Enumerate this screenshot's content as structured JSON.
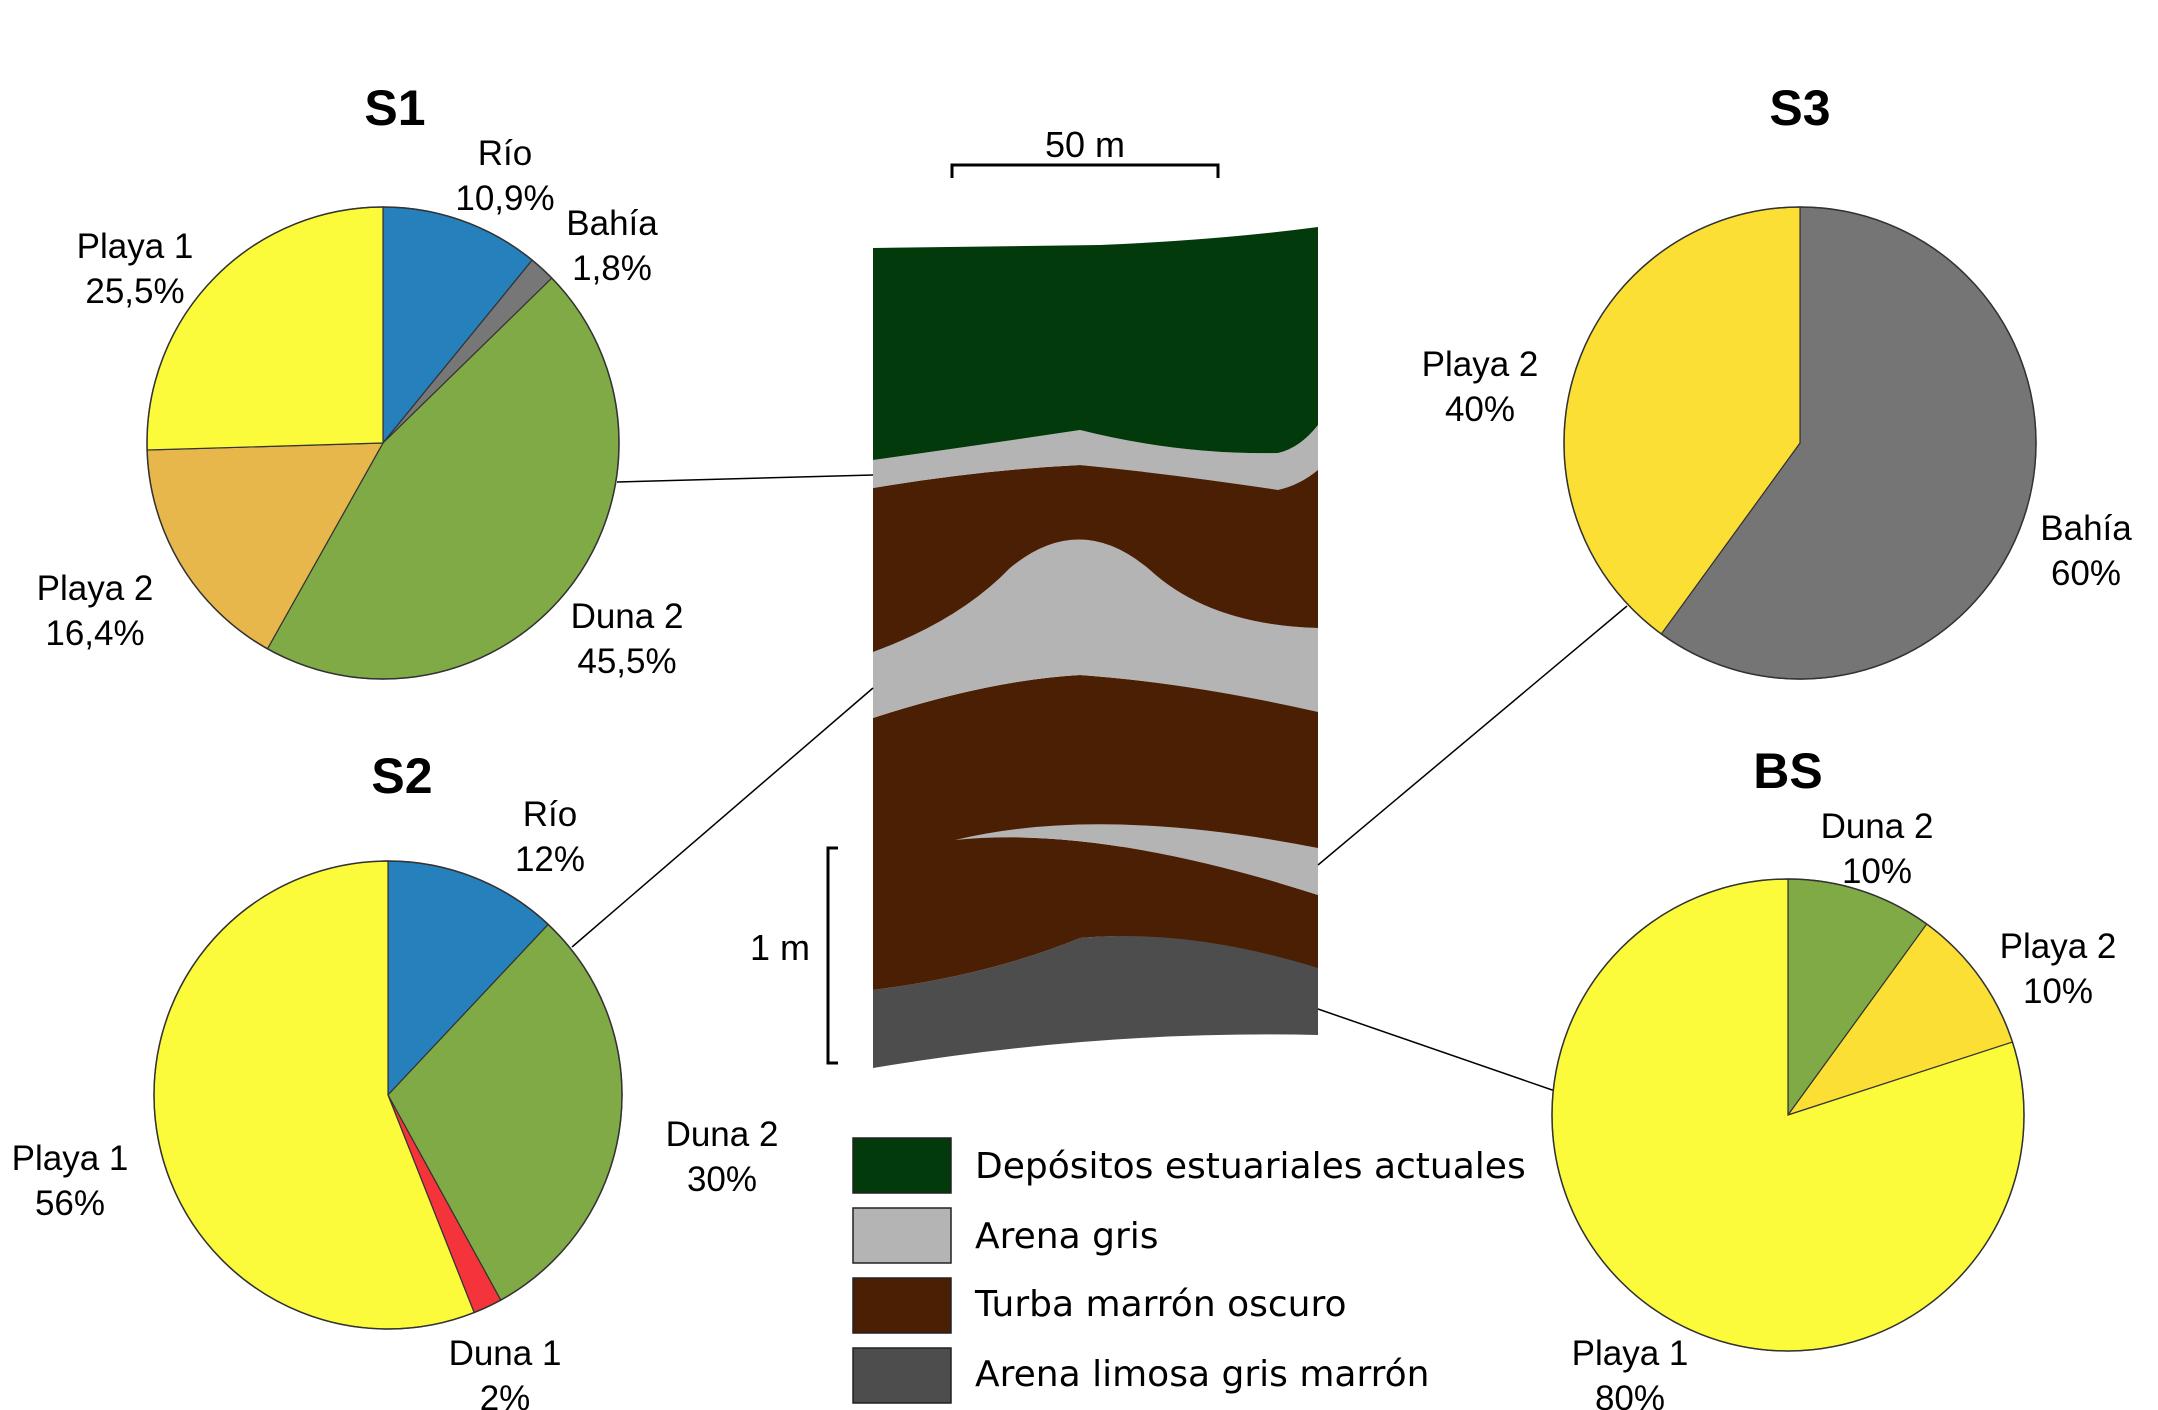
{
  "chart_data": [
    {
      "type": "pie",
      "title": "S1",
      "series": [
        {
          "name": "Río",
          "value": 10.9,
          "label": "10,9%",
          "color": "#2580bc"
        },
        {
          "name": "Bahía",
          "value": 1.8,
          "label": "1,8%",
          "color": "#777777"
        },
        {
          "name": "Duna 2",
          "value": 45.5,
          "label": "45,5%",
          "color": "#80aa46"
        },
        {
          "name": "Playa 2",
          "value": 16.4,
          "label": "16,4%",
          "color": "#e8b74c"
        },
        {
          "name": "Playa 1",
          "value": 25.5,
          "label": "25,5%",
          "color": "#fbfb3c"
        }
      ]
    },
    {
      "type": "pie",
      "title": "S2",
      "series": [
        {
          "name": "Río",
          "value": 12,
          "label": "12%",
          "color": "#2580bc"
        },
        {
          "name": "Duna 2",
          "value": 30,
          "label": "30%",
          "color": "#80aa46"
        },
        {
          "name": "Duna 1",
          "value": 2,
          "label": "2%",
          "color": "#f4333a"
        },
        {
          "name": "Playa 1",
          "value": 56,
          "label": "56%",
          "color": "#fbfb3c"
        }
      ]
    },
    {
      "type": "pie",
      "title": "S3",
      "series": [
        {
          "name": "Bahía",
          "value": 60,
          "label": "60%",
          "color": "#757575"
        },
        {
          "name": "Playa 2",
          "value": 40,
          "label": "40%",
          "color": "#fbdf35"
        }
      ]
    },
    {
      "type": "pie",
      "title": "BS",
      "series": [
        {
          "name": "Duna 2",
          "value": 10,
          "label": "10%",
          "color": "#80aa46"
        },
        {
          "name": "Playa 2",
          "value": 10,
          "label": "10%",
          "color": "#fbdf35"
        },
        {
          "name": "Playa 1",
          "value": 80,
          "label": "80%",
          "color": "#fbfb3c"
        }
      ]
    }
  ],
  "section": {
    "scale_horizontal": "50 m",
    "scale_vertical": "1 m",
    "legend": [
      {
        "label": "Depósitos estuariales actuales",
        "color": "#033a0c"
      },
      {
        "label": "Arena gris",
        "color": "#b4b4b4"
      },
      {
        "label": "Turba marrón oscuro",
        "color": "#4a1f03"
      },
      {
        "label": "Arena limosa gris marrón",
        "color": "#4d4d4d"
      }
    ]
  }
}
